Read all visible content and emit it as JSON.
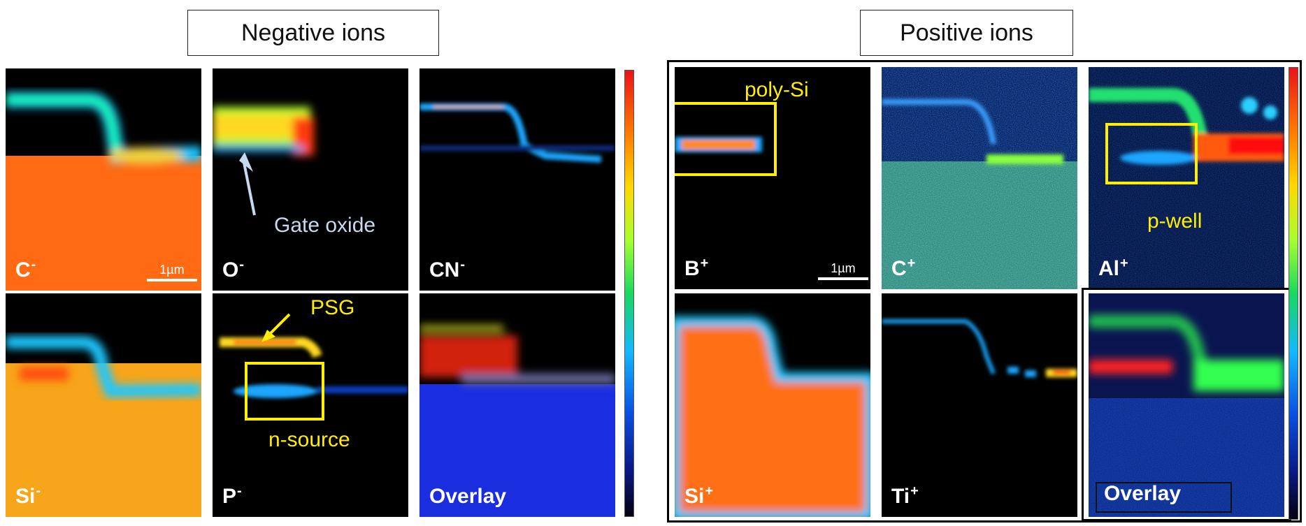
{
  "groups": {
    "negative": {
      "title": "Negative ions",
      "panels": [
        {
          "label": "C",
          "charge": "-"
        },
        {
          "label": "O",
          "charge": "-"
        },
        {
          "label": "CN",
          "charge": "-"
        },
        {
          "label": "Si",
          "charge": "-"
        },
        {
          "label": "P",
          "charge": "-"
        },
        {
          "label": "Overlay",
          "charge": ""
        }
      ]
    },
    "positive": {
      "title": "Positive ions",
      "panels": [
        {
          "label": "B",
          "charge": "+"
        },
        {
          "label": "C",
          "charge": "+"
        },
        {
          "label": "Al",
          "charge": "+"
        },
        {
          "label": "Si",
          "charge": "+"
        },
        {
          "label": "Ti",
          "charge": "+"
        },
        {
          "label": "Overlay",
          "charge": ""
        }
      ]
    }
  },
  "annotations": {
    "gate_oxide": "Gate oxide",
    "psg": "PSG",
    "n_source": "n-source",
    "poly_si": "poly-Si",
    "p_well": "p-well"
  },
  "scale_bar": "1µm",
  "colorbar": {
    "description": "intensity color scale from dark (low) to red (high)",
    "colors": [
      "#e8141b",
      "#ff7a00",
      "#ffd800",
      "#1ad860",
      "#13b8ff",
      "#0a4ee0",
      "#05000f"
    ]
  }
}
